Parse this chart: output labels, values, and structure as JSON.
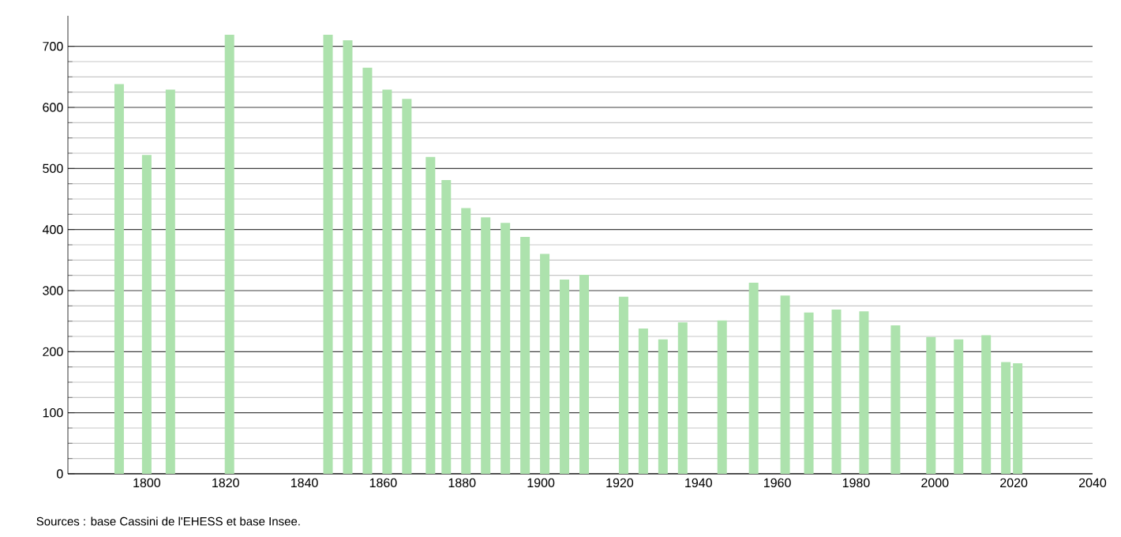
{
  "chart_data": {
    "type": "bar",
    "x": [
      1793,
      1800,
      1806,
      1821,
      1831,
      1836,
      1841,
      1846,
      1851,
      1856,
      1861,
      1866,
      1872,
      1876,
      1881,
      1886,
      1891,
      1896,
      1901,
      1906,
      1911,
      1921,
      1926,
      1931,
      1936,
      1946,
      1954,
      1962,
      1968,
      1975,
      1982,
      1990,
      1999,
      2006,
      2013,
      2018,
      2021
    ],
    "values": [
      638,
      522,
      629,
      719,
      null,
      null,
      null,
      719,
      710,
      665,
      629,
      614,
      519,
      481,
      435,
      420,
      411,
      388,
      360,
      318,
      326,
      290,
      238,
      220,
      248,
      251,
      313,
      292,
      264,
      269,
      266,
      243,
      224,
      220,
      227,
      183,
      181
    ],
    "color": "#ade2ad",
    "xlim": [
      1780,
      2040
    ],
    "xticks": [
      1800,
      1820,
      1840,
      1860,
      1880,
      1900,
      1920,
      1940,
      1960,
      1980,
      2000,
      2020,
      2040
    ],
    "ylim": [
      0,
      750
    ],
    "yticks": [
      0,
      100,
      200,
      300,
      400,
      500,
      600,
      700
    ],
    "grid": "y",
    "annotations": [
      "Sources : base Cassini de l'EHESS et base Insee."
    ]
  }
}
